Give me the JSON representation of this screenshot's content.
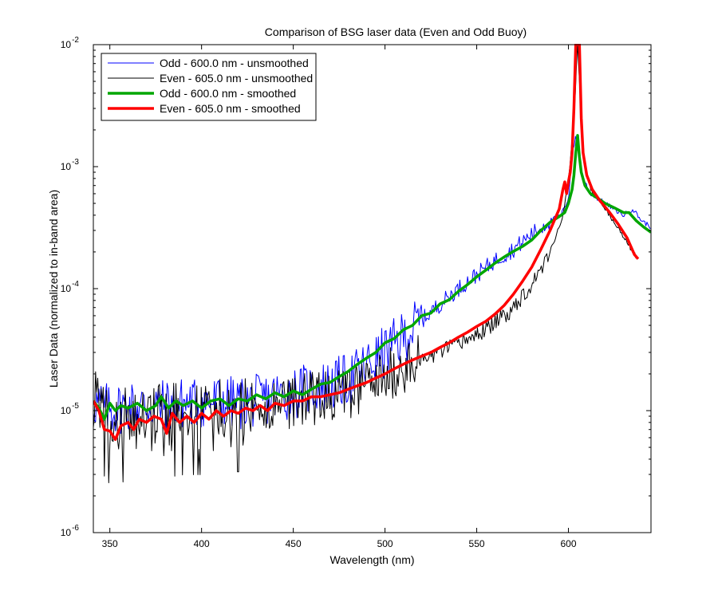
{
  "chart_data": {
    "type": "line",
    "title": "Comparison of BSG laser data (Even and Odd Buoy)",
    "xlabel": "Wavelength (nm)",
    "ylabel": "Laser Data (normalized to in-band area)",
    "xlim": [
      341,
      645
    ],
    "ylim": [
      1e-06,
      0.01
    ],
    "y_scale": "log",
    "grid": false,
    "legend": "top-left",
    "x_ticks": [
      "350",
      "400",
      "450",
      "500",
      "550",
      "600"
    ],
    "x_tick_values": [
      350,
      400,
      450,
      500,
      550,
      600
    ],
    "y_ticks": [
      {
        "base": "10",
        "exp": "-6"
      },
      {
        "base": "10",
        "exp": "-5"
      },
      {
        "base": "10",
        "exp": "-4"
      },
      {
        "base": "10",
        "exp": "-3"
      },
      {
        "base": "10",
        "exp": "-2"
      }
    ],
    "y_tick_values": [
      1e-06,
      1e-05,
      0.0001,
      0.001,
      0.01
    ],
    "series": [
      {
        "name": "Odd - 600.0 nm - unsmoothed",
        "color": "#0000ff",
        "width": 1,
        "noise": true,
        "x": [
          341,
          350,
          360,
          370,
          380,
          390,
          400,
          410,
          420,
          430,
          440,
          450,
          460,
          470,
          480,
          490,
          500,
          510,
          520,
          530,
          540,
          550,
          560,
          570,
          580,
          590,
          596,
          600,
          602,
          604,
          606,
          608,
          612,
          620,
          630,
          635,
          640,
          645
        ],
        "y": [
          1.2e-05,
          1e-05,
          1.1e-05,
          1.1e-05,
          1.1e-05,
          1.15e-05,
          1.15e-05,
          1.2e-05,
          1.15e-05,
          1.2e-05,
          1.3e-05,
          1.4e-05,
          1.5e-05,
          1.6e-05,
          1.8e-05,
          2.3e-05,
          3e-05,
          4e-05,
          5.5e-05,
          7.5e-05,
          0.0001,
          0.00013,
          0.00017,
          0.00021,
          0.00028,
          0.00036,
          0.0004,
          0.00055,
          0.0012,
          0.0018,
          0.0012,
          0.0008,
          0.0006,
          0.0005,
          0.0004,
          0.00045,
          0.00036,
          0.00032
        ]
      },
      {
        "name": "Even - 605.0 nm - unsmoothed",
        "color": "#000000",
        "width": 1,
        "noise": true,
        "x": [
          341,
          350,
          360,
          370,
          380,
          390,
          400,
          410,
          420,
          430,
          440,
          450,
          460,
          470,
          480,
          490,
          500,
          510,
          520,
          530,
          540,
          550,
          560,
          570,
          580,
          590,
          597,
          600,
          603,
          605,
          607,
          609,
          612,
          620,
          630,
          637
        ],
        "y": [
          1.2e-05,
          7.5e-06,
          8e-06,
          8.5e-06,
          8.5e-06,
          9e-06,
          9e-06,
          9.5e-06,
          9.5e-06,
          1e-05,
          1.1e-05,
          1.2e-05,
          1.25e-05,
          1.3e-05,
          1.4e-05,
          1.6e-05,
          1.9e-05,
          2.2e-05,
          2.6e-05,
          3e-05,
          3.5e-05,
          4.2e-05,
          5.2e-05,
          7e-05,
          0.00011,
          0.0002,
          0.0004,
          0.00075,
          0.0025,
          0.01,
          0.0025,
          0.001,
          0.00065,
          0.00045,
          0.00027,
          0.00018
        ]
      },
      {
        "name": "Odd - 600.0 nm - smoothed",
        "color": "#00a600",
        "width": 3.5,
        "noise": false,
        "x": [
          341,
          344,
          347,
          350,
          353,
          356,
          360,
          365,
          370,
          375,
          378,
          382,
          386,
          390,
          395,
          400,
          405,
          410,
          415,
          420,
          425,
          430,
          435,
          440,
          445,
          450,
          455,
          460,
          465,
          470,
          475,
          480,
          485,
          490,
          495,
          500,
          505,
          510,
          515,
          520,
          525,
          530,
          535,
          540,
          545,
          550,
          555,
          560,
          565,
          570,
          575,
          580,
          585,
          590,
          595,
          598,
          600,
          602,
          603,
          604,
          605,
          606,
          607,
          609,
          612,
          616,
          620,
          625,
          630,
          633,
          637,
          641,
          645
        ],
        "y": [
          1.2e-05,
          1.05e-05,
          8.5e-06,
          1.15e-05,
          1e-05,
          1.1e-05,
          1.05e-05,
          1.15e-05,
          1e-05,
          1.1e-05,
          1.3e-05,
          1.05e-05,
          1.2e-05,
          1.1e-05,
          1.2e-05,
          1.05e-05,
          1.2e-05,
          1.25e-05,
          1.1e-05,
          1.25e-05,
          1.2e-05,
          1.35e-05,
          1.25e-05,
          1.4e-05,
          1.3e-05,
          1.45e-05,
          1.35e-05,
          1.5e-05,
          1.65e-05,
          1.7e-05,
          1.9e-05,
          2.1e-05,
          2.4e-05,
          2.7e-05,
          3e-05,
          3.6e-05,
          3.9e-05,
          4.6e-05,
          5e-05,
          6e-05,
          6.3e-05,
          7.5e-05,
          8.1e-05,
          9.5e-05,
          0.000108,
          0.000125,
          0.000142,
          0.000162,
          0.000182,
          0.000202,
          0.000222,
          0.00025,
          0.0003,
          0.00035,
          0.00039,
          0.00042,
          0.0005,
          0.00065,
          0.00085,
          0.0013,
          0.0018,
          0.0012,
          0.0009,
          0.0007,
          0.0006,
          0.00055,
          0.0005,
          0.00046,
          0.00042,
          0.00042,
          0.00036,
          0.00032,
          0.00029
        ]
      },
      {
        "name": "Even - 605.0 nm - smoothed",
        "color": "#ff0000",
        "width": 3.5,
        "noise": false,
        "x": [
          341,
          344,
          347,
          350,
          353,
          356,
          360,
          363,
          366,
          370,
          374,
          378,
          381,
          384,
          388,
          392,
          396,
          400,
          404,
          408,
          412,
          416,
          420,
          424,
          428,
          432,
          436,
          440,
          445,
          450,
          455,
          460,
          465,
          470,
          475,
          480,
          485,
          490,
          495,
          500,
          505,
          510,
          515,
          520,
          525,
          530,
          535,
          540,
          545,
          550,
          555,
          560,
          565,
          570,
          575,
          580,
          585,
          590,
          595,
          597,
          598,
          599,
          600,
          601,
          602,
          603,
          604,
          604.5,
          605.5,
          606,
          607,
          608,
          610,
          613,
          617,
          622,
          627,
          632,
          636,
          638
        ],
        "y": [
          1.2e-05,
          1e-05,
          7e-06,
          6.8e-06,
          5.8e-06,
          7.5e-06,
          8e-06,
          7e-06,
          8.5e-06,
          8e-06,
          9e-06,
          8.5e-06,
          6.5e-06,
          9.5e-06,
          8e-06,
          9e-06,
          8e-06,
          9.5e-06,
          8.5e-06,
          1e-05,
          9e-06,
          1e-05,
          9.5e-06,
          1.05e-05,
          1e-05,
          1.1e-05,
          1e-05,
          1.15e-05,
          1.1e-05,
          1.2e-05,
          1.2e-05,
          1.3e-05,
          1.3e-05,
          1.35e-05,
          1.4e-05,
          1.5e-05,
          1.6e-05,
          1.7e-05,
          1.85e-05,
          2e-05,
          2.2e-05,
          2.4e-05,
          2.6e-05,
          2.8e-05,
          3e-05,
          3.3e-05,
          3.6e-05,
          4e-05,
          4.4e-05,
          4.9e-05,
          5.4e-05,
          6.2e-05,
          7.3e-05,
          9e-05,
          0.000115,
          0.00015,
          0.00021,
          0.0003,
          0.00045,
          0.00065,
          0.00075,
          0.0006,
          0.00075,
          0.0009,
          0.0013,
          0.003,
          0.01,
          0.01,
          0.01,
          0.01,
          0.0025,
          0.0013,
          0.00085,
          0.00065,
          0.00053,
          0.00043,
          0.00034,
          0.00026,
          0.00019,
          0.000175
        ]
      }
    ]
  }
}
